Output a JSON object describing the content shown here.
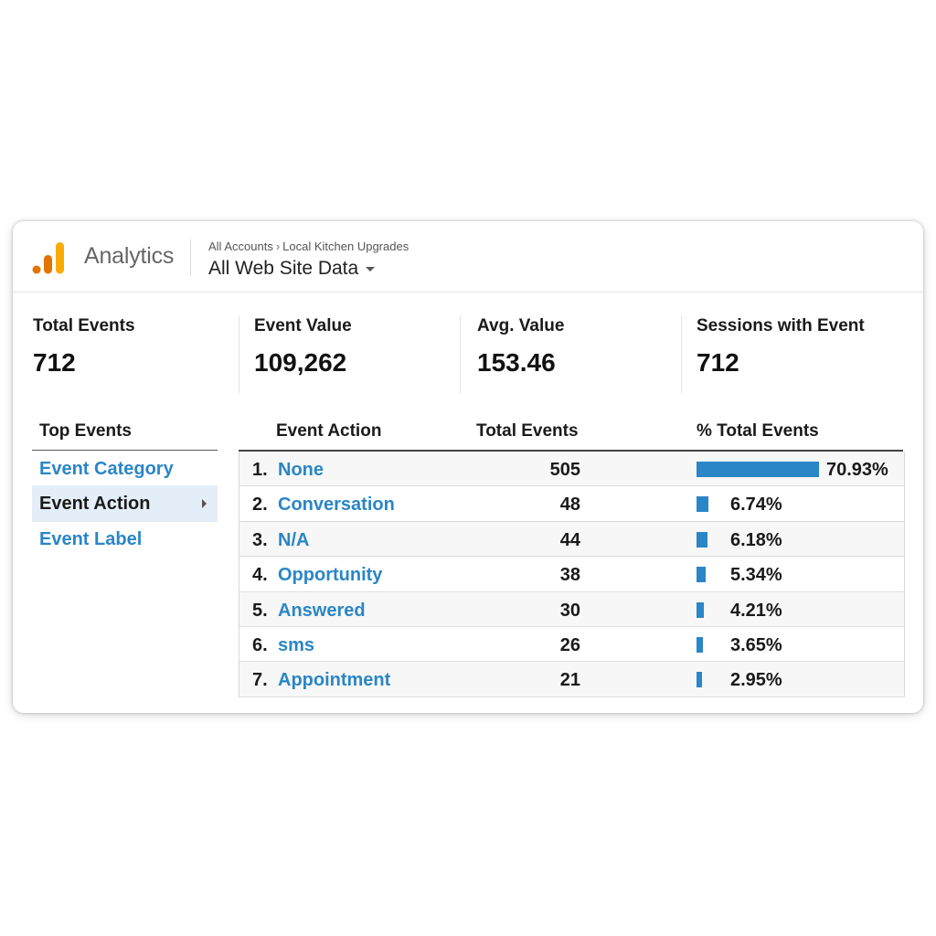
{
  "header": {
    "brand": "Analytics",
    "breadcrumb": {
      "account": "All Accounts",
      "separator": "›",
      "property": "Local Kitchen Upgrades"
    },
    "view": "All Web Site Data",
    "logo_icon": "analytics-bars-logo",
    "caret_icon": "caret-down-icon"
  },
  "metrics": [
    {
      "label": "Total Events",
      "value": "712"
    },
    {
      "label": "Event Value",
      "value": "109,262"
    },
    {
      "label": "Avg. Value",
      "value": "153.46"
    },
    {
      "label": "Sessions with Event",
      "value": "712"
    }
  ],
  "sidebar": {
    "title": "Top Events",
    "items": [
      {
        "label": "Event Category"
      },
      {
        "label": "Event Action"
      },
      {
        "label": "Event Label"
      }
    ],
    "selected": "Event Action"
  },
  "table": {
    "columns": [
      "Event Action",
      "Total Events",
      "% Total Events"
    ],
    "rows": [
      {
        "rank": "1.",
        "action": "None",
        "total": "505",
        "percent": "70.93%",
        "share": 0.7093
      },
      {
        "rank": "2.",
        "action": "Conversation",
        "total": "48",
        "percent": "6.74%",
        "share": 0.0674
      },
      {
        "rank": "3.",
        "action": "N/A",
        "total": "44",
        "percent": "6.18%",
        "share": 0.0618
      },
      {
        "rank": "4.",
        "action": "Opportunity",
        "total": "38",
        "percent": "5.34%",
        "share": 0.0534
      },
      {
        "rank": "5.",
        "action": "Answered",
        "total": "30",
        "percent": "4.21%",
        "share": 0.0421
      },
      {
        "rank": "6.",
        "action": "sms",
        "total": "26",
        "percent": "3.65%",
        "share": 0.0365
      },
      {
        "rank": "7.",
        "action": "Appointment",
        "total": "21",
        "percent": "2.95%",
        "share": 0.0295
      }
    ]
  },
  "colors": {
    "accent": "#2a86c6",
    "logo_orange": "#f9ab00",
    "logo_dark_orange": "#e37400",
    "selected_bg": "#e3eef8"
  }
}
